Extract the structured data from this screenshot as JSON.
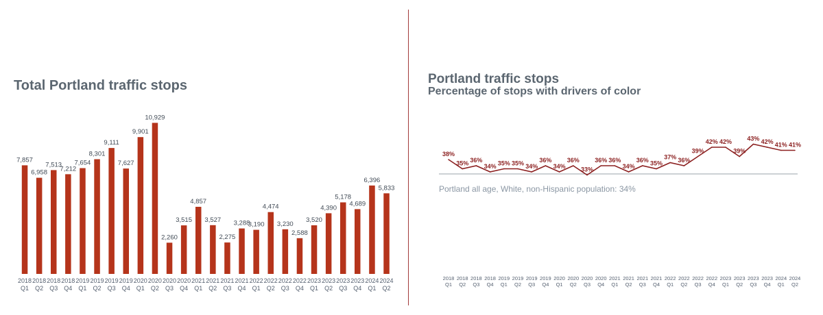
{
  "chart_data": [
    {
      "type": "bar",
      "title": "Total Portland traffic stops",
      "xlabel": "",
      "ylabel": "",
      "categories": [
        [
          "2018",
          "Q1"
        ],
        [
          "2018",
          "Q2"
        ],
        [
          "2018",
          "Q3"
        ],
        [
          "2018",
          "Q4"
        ],
        [
          "2019",
          "Q1"
        ],
        [
          "2019",
          "Q2"
        ],
        [
          "2019",
          "Q3"
        ],
        [
          "2019",
          "Q4"
        ],
        [
          "2020",
          "Q1"
        ],
        [
          "2020",
          "Q2"
        ],
        [
          "2020",
          "Q3"
        ],
        [
          "2020",
          "Q4"
        ],
        [
          "2021",
          "Q1"
        ],
        [
          "2021",
          "Q2"
        ],
        [
          "2021",
          "Q3"
        ],
        [
          "2021",
          "Q4"
        ],
        [
          "2022",
          "Q1"
        ],
        [
          "2022",
          "Q2"
        ],
        [
          "2022",
          "Q3"
        ],
        [
          "2022",
          "Q4"
        ],
        [
          "2023",
          "Q1"
        ],
        [
          "2023",
          "Q2"
        ],
        [
          "2023",
          "Q3"
        ],
        [
          "2023",
          "Q4"
        ],
        [
          "2024",
          "Q1"
        ],
        [
          "2024",
          "Q2"
        ]
      ],
      "values": [
        7857,
        6958,
        7513,
        7212,
        7654,
        8301,
        9111,
        7627,
        9901,
        10929,
        2260,
        3515,
        4857,
        3527,
        2275,
        3288,
        3190,
        4474,
        3230,
        2588,
        3520,
        4390,
        5178,
        4689,
        6396,
        5833
      ],
      "value_labels": [
        "7,857",
        "6,958",
        "7,513",
        "7,212",
        "7,654",
        "8,301",
        "9,111",
        "7,627",
        "9,901",
        "10,929",
        "2,260",
        "3,515",
        "4,857",
        "3,527",
        "2,275",
        "3,288",
        "3,190",
        "4,474",
        "3,230",
        "2,588",
        "3,520",
        "4,390",
        "5,178",
        "4,689",
        "6,396",
        "5,833"
      ],
      "ylim": [
        0,
        11000
      ],
      "color": "#b5341b",
      "grid": false,
      "legend": "none"
    },
    {
      "type": "line",
      "title": "Portland traffic stops",
      "subtitle": "Percentage of stops with drivers of color",
      "xlabel": "",
      "ylabel": "",
      "categories": [
        [
          "2018",
          "Q1"
        ],
        [
          "2018",
          "Q2"
        ],
        [
          "2018",
          "Q3"
        ],
        [
          "2018",
          "Q4"
        ],
        [
          "2019",
          "Q1"
        ],
        [
          "2019",
          "Q2"
        ],
        [
          "2019",
          "Q3"
        ],
        [
          "2019",
          "Q4"
        ],
        [
          "2020",
          "Q1"
        ],
        [
          "2020",
          "Q2"
        ],
        [
          "2020",
          "Q3"
        ],
        [
          "2020",
          "Q4"
        ],
        [
          "2021",
          "Q1"
        ],
        [
          "2021",
          "Q2"
        ],
        [
          "2021",
          "Q3"
        ],
        [
          "2021",
          "Q4"
        ],
        [
          "2022",
          "Q1"
        ],
        [
          "2022",
          "Q2"
        ],
        [
          "2022",
          "Q3"
        ],
        [
          "2022",
          "Q4"
        ],
        [
          "2023",
          "Q1"
        ],
        [
          "2023",
          "Q2"
        ],
        [
          "2023",
          "Q3"
        ],
        [
          "2023",
          "Q4"
        ],
        [
          "2024",
          "Q1"
        ],
        [
          "2024",
          "Q2"
        ]
      ],
      "values": [
        38,
        35,
        36,
        34,
        35,
        35,
        34,
        36,
        34,
        36,
        33,
        36,
        36,
        34,
        36,
        35,
        37,
        36,
        39,
        42,
        42,
        39,
        43,
        42,
        41,
        41
      ],
      "value_labels": [
        "38%",
        "35%",
        "36%",
        "34%",
        "35%",
        "35%",
        "34%",
        "36%",
        "34%",
        "36%",
        "33%",
        "36%",
        "36%",
        "34%",
        "36%",
        "35%",
        "37%",
        "36%",
        "39%",
        "42%",
        "42%",
        "39%",
        "43%",
        "42%",
        "41%",
        "41%"
      ],
      "reference_line": {
        "value": 34,
        "label": "Portland all age, White, non-Hispanic population: 34%"
      },
      "ylim": [
        30,
        46
      ],
      "color": "#8b1f1f",
      "grid": false,
      "legend": "none"
    }
  ]
}
